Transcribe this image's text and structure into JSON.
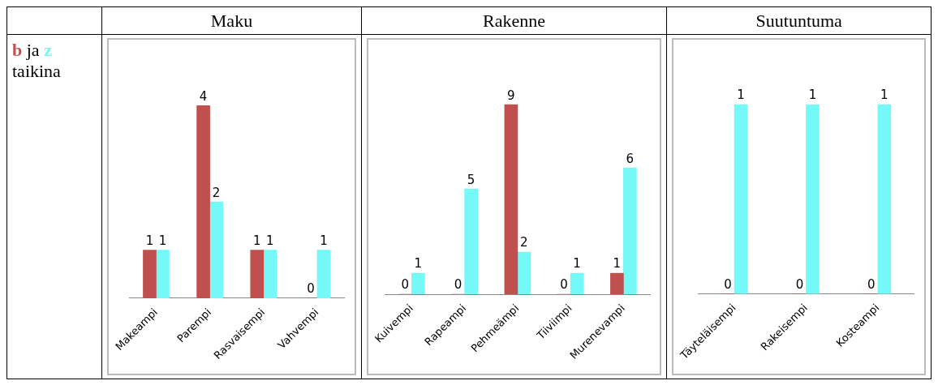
{
  "chart_data": [
    {
      "type": "bar",
      "title": "Maku",
      "categories": [
        "Makeampi",
        "Parempi",
        "Rasvaisempi",
        "Vahvempi"
      ],
      "data_labels": true,
      "annotations": [
        "ja",
        "taikina"
      ],
      "series": [
        {
          "name": "b",
          "color": "#c0504d",
          "values": [
            1,
            4,
            1,
            0
          ]
        },
        {
          "name": "z",
          "color": "#75f8f8",
          "values": [
            1,
            2,
            1,
            1
          ]
        }
      ]
    },
    {
      "type": "bar",
      "title": "Rakenne",
      "categories": [
        "Kuivempi",
        "Rapeampi",
        "Pehmeämpi",
        "Tiiviimpi",
        "Murenevampi"
      ],
      "data_labels": true,
      "series": [
        {
          "color": "#c0504d",
          "values": [
            0,
            0,
            9,
            0,
            1
          ]
        },
        {
          "color": "#75f8f8",
          "values": [
            1,
            5,
            2,
            1,
            6
          ]
        }
      ]
    },
    {
      "type": "bar",
      "title": "Suutuntuma",
      "categories": [
        "Täyteläisempi",
        "Rakeisempi",
        "Kosteampi"
      ],
      "data_labels": true,
      "series": [
        {
          "color": "#c0504d",
          "values": [
            0,
            0,
            0
          ]
        },
        {
          "color": "#75f8f8",
          "values": [
            1,
            1,
            1
          ]
        }
      ]
    }
  ]
}
